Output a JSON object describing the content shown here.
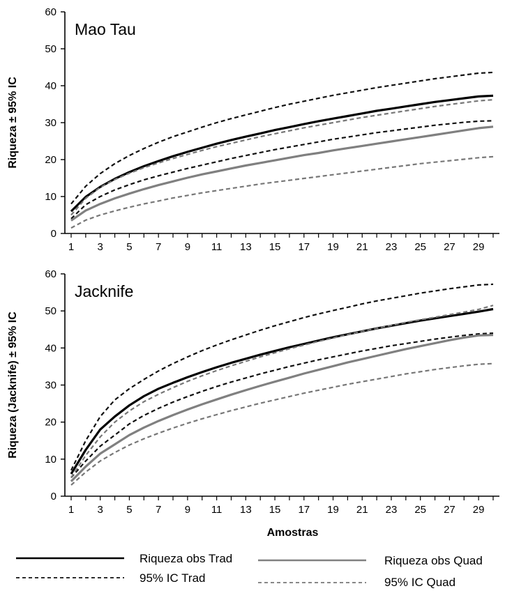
{
  "chart_data": [
    {
      "type": "line",
      "title": "Mao Tau",
      "ylabel": "Riqueza ± 95% IC",
      "xlabel": "",
      "ylim": [
        0,
        60
      ],
      "yticks": [
        0,
        10,
        20,
        30,
        40,
        50,
        60
      ],
      "xticks": [
        1,
        3,
        5,
        7,
        9,
        11,
        13,
        15,
        17,
        19,
        21,
        23,
        25,
        27,
        29
      ],
      "xlim": [
        1,
        30
      ],
      "grid": false,
      "x": [
        1,
        2,
        3,
        4,
        5,
        6,
        7,
        8,
        9,
        10,
        11,
        12,
        13,
        14,
        15,
        16,
        17,
        18,
        19,
        20,
        21,
        22,
        23,
        24,
        25,
        26,
        27,
        28,
        29,
        30
      ],
      "series": [
        {
          "name": "95% IC Trad",
          "color": "#111111",
          "dash": "dashed",
          "values": [
            8,
            12.8,
            16.2,
            18.9,
            21.1,
            23,
            24.7,
            26.2,
            27.5,
            28.8,
            30,
            31.1,
            32.1,
            33.1,
            34.1,
            35,
            35.8,
            36.6,
            37.4,
            38.1,
            38.8,
            39.5,
            40.1,
            40.7,
            41.3,
            41.9,
            42.4,
            42.9,
            43.4,
            43.6
          ]
        },
        {
          "name": "Riqueza obs Trad",
          "color": "#000000",
          "dash": "solid",
          "values": [
            6,
            9.9,
            12.6,
            14.8,
            16.6,
            18.2,
            19.6,
            20.9,
            22.1,
            23.2,
            24.3,
            25.3,
            26.2,
            27.1,
            28,
            28.8,
            29.6,
            30.4,
            31.1,
            31.8,
            32.5,
            33.2,
            33.8,
            34.4,
            35,
            35.6,
            36.1,
            36.6,
            37.1,
            37.3
          ]
        },
        {
          "name": "95% IC Trad",
          "color": "#111111",
          "dash": "dashed",
          "values": [
            4,
            7.8,
            10,
            11.8,
            13.2,
            14.5,
            15.6,
            16.6,
            17.6,
            18.5,
            19.4,
            20.3,
            21.1,
            21.9,
            22.7,
            23.4,
            24.1,
            24.8,
            25.5,
            26.1,
            26.7,
            27.3,
            27.8,
            28.3,
            28.8,
            29.3,
            29.7,
            30.1,
            30.4,
            30.5
          ]
        },
        {
          "name": "95% IC Quad",
          "color": "#777777",
          "dash": "dashed",
          "values": [
            5,
            9.5,
            12.5,
            14.6,
            16.3,
            17.8,
            19.1,
            20.3,
            21.4,
            22.5,
            23.5,
            24.4,
            25.3,
            26.2,
            27,
            27.8,
            28.6,
            29.3,
            30,
            30.7,
            31.4,
            32,
            32.6,
            33.2,
            33.8,
            34.4,
            34.9,
            35.4,
            35.9,
            36.2
          ]
        },
        {
          "name": "Riqueza obs Quad",
          "color": "#808080",
          "dash": "solid",
          "values": [
            3.5,
            6.2,
            8,
            9.5,
            10.8,
            12,
            13.1,
            14.1,
            15.1,
            16,
            16.8,
            17.6,
            18.4,
            19.1,
            19.8,
            20.5,
            21.2,
            21.8,
            22.5,
            23.1,
            23.7,
            24.3,
            24.9,
            25.5,
            26.1,
            26.7,
            27.3,
            27.9,
            28.5,
            28.9
          ]
        },
        {
          "name": "95% IC Quad",
          "color": "#777777",
          "dash": "dashed",
          "values": [
            1.5,
            3.6,
            5,
            6.1,
            7.1,
            8,
            8.8,
            9.6,
            10.3,
            11,
            11.6,
            12.2,
            12.8,
            13.4,
            13.9,
            14.4,
            14.9,
            15.4,
            15.9,
            16.4,
            16.9,
            17.4,
            17.9,
            18.4,
            18.9,
            19.3,
            19.7,
            20.1,
            20.5,
            20.8
          ]
        }
      ]
    },
    {
      "type": "line",
      "title": "Jacknife",
      "ylabel": "Riqueza (Jacknife) ± 95% IC",
      "xlabel": "Amostras",
      "ylim": [
        0,
        60
      ],
      "yticks": [
        0,
        10,
        20,
        30,
        40,
        50,
        60
      ],
      "xticks": [
        1,
        3,
        5,
        7,
        9,
        11,
        13,
        15,
        17,
        19,
        21,
        23,
        25,
        27,
        29
      ],
      "xlim": [
        1,
        30
      ],
      "grid": false,
      "x": [
        1,
        2,
        3,
        4,
        5,
        6,
        7,
        8,
        9,
        10,
        11,
        12,
        13,
        14,
        15,
        16,
        17,
        18,
        19,
        20,
        21,
        22,
        23,
        24,
        25,
        26,
        27,
        28,
        29,
        30
      ],
      "series": [
        {
          "name": "95% IC Trad",
          "color": "#111111",
          "dash": "dashed",
          "values": [
            7,
            15,
            21.5,
            26,
            29,
            31.5,
            33.8,
            35.8,
            37.6,
            39.3,
            40.8,
            42.2,
            43.5,
            44.8,
            46,
            47.1,
            48.2,
            49.2,
            50.1,
            51,
            51.9,
            52.7,
            53.4,
            54.1,
            54.8,
            55.4,
            56,
            56.5,
            57,
            57.2
          ]
        },
        {
          "name": "Riqueza obs Trad",
          "color": "#000000",
          "dash": "solid",
          "values": [
            6,
            12.5,
            18,
            21.5,
            24.5,
            27,
            29,
            30.6,
            32.1,
            33.5,
            34.8,
            36,
            37.1,
            38.2,
            39.2,
            40.2,
            41.1,
            42,
            42.9,
            43.7,
            44.5,
            45.3,
            46,
            46.7,
            47.4,
            48,
            48.6,
            49.2,
            49.8,
            50.5
          ]
        },
        {
          "name": "95% IC Trad",
          "color": "#111111",
          "dash": "dashed",
          "values": [
            5,
            9.5,
            13.5,
            16.5,
            19.5,
            21.8,
            23.7,
            25.4,
            26.9,
            28.3,
            29.6,
            30.8,
            31.9,
            33,
            34,
            35,
            35.9,
            36.8,
            37.6,
            38.4,
            39.2,
            39.9,
            40.6,
            41.2,
            41.8,
            42.4,
            42.9,
            43.4,
            43.8,
            44
          ]
        },
        {
          "name": "95% IC Quad",
          "color": "#777777",
          "dash": "dashed",
          "values": [
            5,
            11,
            16,
            20,
            23,
            25.5,
            27.5,
            29.3,
            31,
            32.5,
            33.9,
            35.2,
            36.4,
            37.6,
            38.7,
            39.8,
            40.8,
            41.8,
            42.7,
            43.6,
            44.5,
            45.3,
            46.1,
            46.9,
            47.6,
            48.3,
            49,
            49.7,
            50.4,
            51.5
          ]
        },
        {
          "name": "Riqueza obs Quad",
          "color": "#808080",
          "dash": "solid",
          "values": [
            4,
            8,
            11.5,
            14,
            16.5,
            18.5,
            20.3,
            21.9,
            23.4,
            24.8,
            26.1,
            27.4,
            28.6,
            29.8,
            30.9,
            32,
            33.1,
            34.1,
            35.1,
            36.1,
            37,
            37.9,
            38.8,
            39.7,
            40.5,
            41.3,
            42.1,
            42.8,
            43.4,
            43.5
          ]
        },
        {
          "name": "95% IC Quad",
          "color": "#777777",
          "dash": "dashed",
          "values": [
            3,
            6.5,
            9.5,
            11.8,
            13.8,
            15.5,
            17,
            18.4,
            19.7,
            20.9,
            22,
            23.1,
            24.1,
            25.1,
            26,
            26.9,
            27.8,
            28.6,
            29.4,
            30.2,
            30.9,
            31.6,
            32.3,
            33,
            33.6,
            34.2,
            34.7,
            35.2,
            35.6,
            35.8
          ]
        }
      ]
    }
  ],
  "legend": [
    {
      "label": "Riqueza obs Trad",
      "color": "#000000",
      "dash": "solid"
    },
    {
      "label": "Riqueza obs Quad",
      "color": "#808080",
      "dash": "solid"
    },
    {
      "label": "95% IC Trad",
      "color": "#111111",
      "dash": "dashed"
    },
    {
      "label": "95% IC Quad",
      "color": "#777777",
      "dash": "dashed"
    }
  ]
}
